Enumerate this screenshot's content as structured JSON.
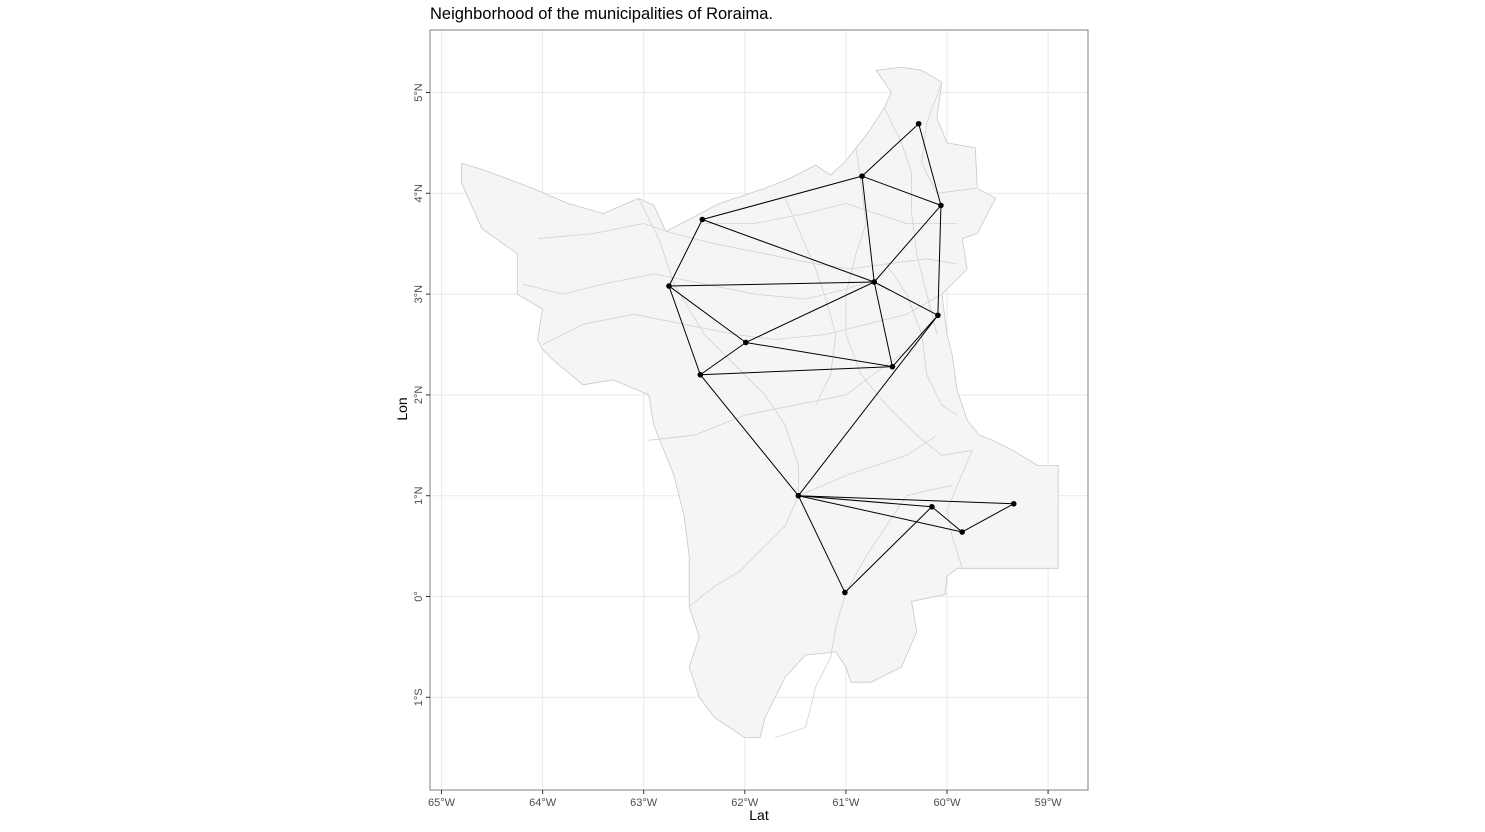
{
  "chart_data": {
    "type": "map",
    "title": "Neighborhood of the municipalities of Roraima.",
    "xlabel": "Lat",
    "ylabel": "Lon",
    "xlim": [
      -65.1,
      -58.6
    ],
    "ylim": [
      -1.9,
      5.6
    ],
    "grid": true,
    "x_ticks": [
      {
        "value": -65,
        "label": "65°W"
      },
      {
        "value": -64,
        "label": "64°W"
      },
      {
        "value": -63,
        "label": "63°W"
      },
      {
        "value": -62,
        "label": "62°W"
      },
      {
        "value": -61,
        "label": "61°W"
      },
      {
        "value": -60,
        "label": "60°W"
      },
      {
        "value": -59,
        "label": "59°W"
      }
    ],
    "y_ticks": [
      {
        "value": 5,
        "label": "5°N"
      },
      {
        "value": 4,
        "label": "4°N"
      },
      {
        "value": 3,
        "label": "3°N"
      },
      {
        "value": 2,
        "label": "2°N"
      },
      {
        "value": 1,
        "label": "1°N"
      },
      {
        "value": 0,
        "label": "0°"
      },
      {
        "value": -1,
        "label": "1°S"
      }
    ],
    "nodes": [
      {
        "id": "n1",
        "lon": -60.28,
        "lat": 4.69
      },
      {
        "id": "n2",
        "lon": -60.84,
        "lat": 4.17
      },
      {
        "id": "n3",
        "lon": -60.06,
        "lat": 3.88
      },
      {
        "id": "n4",
        "lon": -62.42,
        "lat": 3.74
      },
      {
        "id": "n5",
        "lon": -60.72,
        "lat": 3.12
      },
      {
        "id": "n6",
        "lon": -62.75,
        "lat": 3.08
      },
      {
        "id": "n7",
        "lon": -60.09,
        "lat": 2.79
      },
      {
        "id": "n8",
        "lon": -61.99,
        "lat": 2.52
      },
      {
        "id": "n9",
        "lon": -60.54,
        "lat": 2.28
      },
      {
        "id": "n10",
        "lon": -62.44,
        "lat": 2.2
      },
      {
        "id": "n11",
        "lon": -61.47,
        "lat": 1.0
      },
      {
        "id": "n12",
        "lon": -59.34,
        "lat": 0.92
      },
      {
        "id": "n13",
        "lon": -60.15,
        "lat": 0.89
      },
      {
        "id": "n14",
        "lon": -59.85,
        "lat": 0.64
      },
      {
        "id": "n15",
        "lon": -61.01,
        "lat": 0.04
      }
    ],
    "edges": [
      [
        "n1",
        "n2"
      ],
      [
        "n1",
        "n3"
      ],
      [
        "n2",
        "n3"
      ],
      [
        "n2",
        "n4"
      ],
      [
        "n2",
        "n5"
      ],
      [
        "n3",
        "n5"
      ],
      [
        "n3",
        "n7"
      ],
      [
        "n4",
        "n6"
      ],
      [
        "n4",
        "n5"
      ],
      [
        "n5",
        "n6"
      ],
      [
        "n5",
        "n8"
      ],
      [
        "n5",
        "n9"
      ],
      [
        "n5",
        "n7"
      ],
      [
        "n6",
        "n8"
      ],
      [
        "n6",
        "n10"
      ],
      [
        "n8",
        "n10"
      ],
      [
        "n8",
        "n9"
      ],
      [
        "n10",
        "n9"
      ],
      [
        "n9",
        "n7"
      ],
      [
        "n10",
        "n11"
      ],
      [
        "n7",
        "n11"
      ],
      [
        "n11",
        "n12"
      ],
      [
        "n11",
        "n13"
      ],
      [
        "n11",
        "n14"
      ],
      [
        "n11",
        "n15"
      ],
      [
        "n13",
        "n14"
      ],
      [
        "n14",
        "n12"
      ],
      [
        "n13",
        "n15"
      ]
    ],
    "outline": [
      [
        -64.8,
        4.3
      ],
      [
        -64.55,
        4.22
      ],
      [
        -64.1,
        4.05
      ],
      [
        -63.75,
        3.9
      ],
      [
        -63.4,
        3.8
      ],
      [
        -63.05,
        3.95
      ],
      [
        -62.9,
        3.88
      ],
      [
        -62.78,
        3.62
      ],
      [
        -62.25,
        3.9
      ],
      [
        -61.8,
        4.05
      ],
      [
        -61.55,
        4.15
      ],
      [
        -61.3,
        4.28
      ],
      [
        -61.15,
        4.18
      ],
      [
        -61.0,
        4.32
      ],
      [
        -60.9,
        4.45
      ],
      [
        -60.78,
        4.6
      ],
      [
        -60.62,
        4.85
      ],
      [
        -60.55,
        5.0
      ],
      [
        -60.7,
        5.22
      ],
      [
        -60.45,
        5.25
      ],
      [
        -60.25,
        5.22
      ],
      [
        -60.05,
        5.1
      ],
      [
        -60.1,
        4.75
      ],
      [
        -60.0,
        4.5
      ],
      [
        -59.72,
        4.45
      ],
      [
        -59.7,
        4.05
      ],
      [
        -59.52,
        3.95
      ],
      [
        -59.7,
        3.6
      ],
      [
        -59.85,
        3.55
      ],
      [
        -59.8,
        3.25
      ],
      [
        -60.05,
        3.0
      ],
      [
        -60.0,
        2.6
      ],
      [
        -59.95,
        2.4
      ],
      [
        -59.9,
        2.05
      ],
      [
        -59.8,
        1.75
      ],
      [
        -59.68,
        1.6
      ],
      [
        -59.55,
        1.55
      ],
      [
        -59.35,
        1.45
      ],
      [
        -59.1,
        1.3
      ],
      [
        -58.9,
        1.3
      ],
      [
        -58.9,
        0.28
      ],
      [
        -59.45,
        0.28
      ],
      [
        -59.9,
        0.28
      ],
      [
        -60.0,
        0.2
      ],
      [
        -60.02,
        0.02
      ],
      [
        -60.35,
        -0.05
      ],
      [
        -60.3,
        -0.35
      ],
      [
        -60.45,
        -0.7
      ],
      [
        -60.75,
        -0.85
      ],
      [
        -60.95,
        -0.85
      ],
      [
        -61.0,
        -0.7
      ],
      [
        -61.1,
        -0.55
      ],
      [
        -61.4,
        -0.58
      ],
      [
        -61.6,
        -0.8
      ],
      [
        -61.7,
        -1.0
      ],
      [
        -61.8,
        -1.2
      ],
      [
        -61.85,
        -1.4
      ],
      [
        -62.0,
        -1.4
      ],
      [
        -62.3,
        -1.2
      ],
      [
        -62.45,
        -1.0
      ],
      [
        -62.55,
        -0.7
      ],
      [
        -62.45,
        -0.4
      ],
      [
        -62.55,
        -0.1
      ],
      [
        -62.55,
        0.4
      ],
      [
        -62.6,
        0.8
      ],
      [
        -62.7,
        1.2
      ],
      [
        -62.8,
        1.45
      ],
      [
        -62.9,
        1.7
      ],
      [
        -62.95,
        2.0
      ],
      [
        -63.3,
        2.15
      ],
      [
        -63.6,
        2.1
      ],
      [
        -63.9,
        2.35
      ],
      [
        -64.0,
        2.45
      ],
      [
        -64.05,
        2.55
      ],
      [
        -64.0,
        2.85
      ],
      [
        -64.25,
        3.0
      ],
      [
        -64.25,
        3.4
      ],
      [
        -64.6,
        3.65
      ],
      [
        -64.8,
        4.1
      ]
    ],
    "internal_borders": [
      [
        [
          -61.0,
          0.04
        ],
        [
          -61.1,
          -0.3
        ],
        [
          -61.15,
          -0.6
        ],
        [
          -61.3,
          -0.9
        ],
        [
          -61.4,
          -1.3
        ],
        [
          -61.7,
          -1.4
        ]
      ],
      [
        [
          -61.0,
          0.04
        ],
        [
          -60.8,
          0.4
        ],
        [
          -60.6,
          0.7
        ],
        [
          -60.4,
          1.0
        ],
        [
          -60.2,
          1.05
        ],
        [
          -59.95,
          1.1
        ]
      ],
      [
        [
          -59.85,
          0.28
        ],
        [
          -59.95,
          0.6
        ],
        [
          -60.0,
          0.85
        ],
        [
          -59.9,
          1.1
        ],
        [
          -59.75,
          1.45
        ]
      ],
      [
        [
          -61.47,
          1.0
        ],
        [
          -61.6,
          0.7
        ],
        [
          -61.8,
          0.5
        ],
        [
          -62.05,
          0.25
        ],
        [
          -62.3,
          0.1
        ],
        [
          -62.55,
          -0.1
        ]
      ],
      [
        [
          -62.95,
          1.55
        ],
        [
          -62.5,
          1.6
        ],
        [
          -62.0,
          1.8
        ],
        [
          -61.5,
          1.9
        ],
        [
          -61.0,
          2.0
        ],
        [
          -60.6,
          2.3
        ],
        [
          -60.3,
          2.5
        ]
      ],
      [
        [
          -64.0,
          2.5
        ],
        [
          -63.6,
          2.7
        ],
        [
          -63.1,
          2.8
        ],
        [
          -62.6,
          2.7
        ],
        [
          -62.1,
          2.6
        ],
        [
          -61.7,
          2.55
        ],
        [
          -61.2,
          2.6
        ],
        [
          -60.8,
          2.7
        ],
        [
          -60.4,
          2.8
        ],
        [
          -60.05,
          3.0
        ]
      ],
      [
        [
          -64.2,
          3.1
        ],
        [
          -63.8,
          3.0
        ],
        [
          -63.4,
          3.1
        ],
        [
          -62.9,
          3.2
        ],
        [
          -62.4,
          3.1
        ],
        [
          -61.9,
          3.0
        ],
        [
          -61.4,
          2.95
        ],
        [
          -61.0,
          3.05
        ],
        [
          -60.7,
          3.15
        ]
      ],
      [
        [
          -64.05,
          3.55
        ],
        [
          -63.5,
          3.6
        ],
        [
          -63.0,
          3.7
        ],
        [
          -62.7,
          3.6
        ],
        [
          -62.3,
          3.5
        ],
        [
          -61.8,
          3.4
        ],
        [
          -61.3,
          3.3
        ],
        [
          -60.95,
          3.25
        ],
        [
          -60.6,
          3.3
        ],
        [
          -60.2,
          3.35
        ],
        [
          -59.9,
          3.3
        ]
      ],
      [
        [
          -62.4,
          3.7
        ],
        [
          -61.9,
          3.7
        ],
        [
          -61.4,
          3.8
        ],
        [
          -61.0,
          3.9
        ],
        [
          -60.7,
          3.8
        ],
        [
          -60.4,
          3.7
        ],
        [
          -59.9,
          3.7
        ]
      ],
      [
        [
          -60.9,
          4.45
        ],
        [
          -60.85,
          4.1
        ],
        [
          -60.8,
          3.7
        ],
        [
          -60.9,
          3.4
        ],
        [
          -61.0,
          3.0
        ],
        [
          -61.0,
          2.6
        ],
        [
          -60.85,
          2.2
        ],
        [
          -60.6,
          1.9
        ],
        [
          -60.3,
          1.6
        ],
        [
          -60.05,
          1.4
        ],
        [
          -59.75,
          1.45
        ]
      ],
      [
        [
          -60.62,
          4.85
        ],
        [
          -60.45,
          4.5
        ],
        [
          -60.35,
          4.2
        ],
        [
          -60.35,
          3.8
        ],
        [
          -60.3,
          3.4
        ],
        [
          -60.2,
          3.0
        ],
        [
          -60.1,
          2.6
        ]
      ],
      [
        [
          -60.05,
          5.1
        ],
        [
          -60.2,
          4.7
        ],
        [
          -60.25,
          4.3
        ],
        [
          -60.1,
          4.0
        ],
        [
          -59.72,
          4.05
        ]
      ],
      [
        [
          -60.6,
          3.3
        ],
        [
          -60.4,
          3.0
        ],
        [
          -60.25,
          2.6
        ],
        [
          -60.2,
          2.2
        ],
        [
          -60.05,
          1.9
        ],
        [
          -59.9,
          1.8
        ]
      ],
      [
        [
          -61.6,
          3.95
        ],
        [
          -61.45,
          3.6
        ],
        [
          -61.3,
          3.25
        ],
        [
          -61.2,
          2.95
        ],
        [
          -61.1,
          2.6
        ],
        [
          -61.15,
          2.2
        ],
        [
          -61.3,
          1.9
        ]
      ],
      [
        [
          -63.05,
          3.95
        ],
        [
          -62.85,
          3.55
        ],
        [
          -62.7,
          3.1
        ],
        [
          -62.4,
          2.6
        ],
        [
          -62.1,
          2.3
        ],
        [
          -61.8,
          2.0
        ],
        [
          -61.6,
          1.7
        ],
        [
          -61.47,
          1.3
        ],
        [
          -61.47,
          1.0
        ]
      ],
      [
        [
          -60.1,
          1.6
        ],
        [
          -60.4,
          1.4
        ],
        [
          -60.7,
          1.3
        ],
        [
          -61.0,
          1.2
        ],
        [
          -61.47,
          1.0
        ]
      ]
    ]
  }
}
